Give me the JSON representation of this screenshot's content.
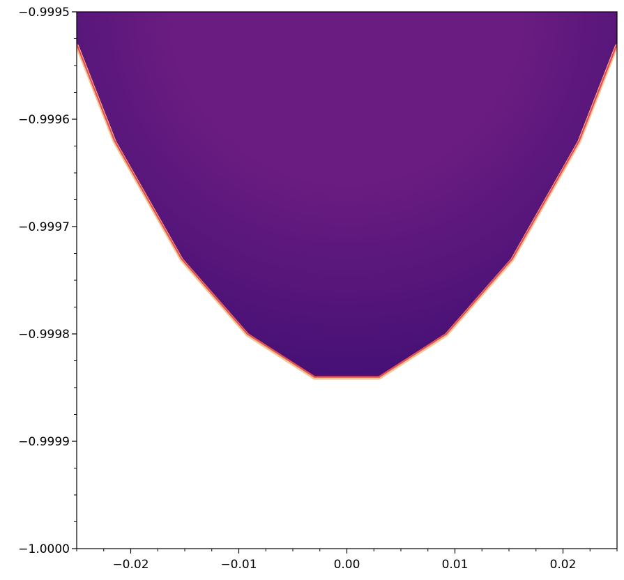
{
  "chart_data": {
    "type": "area",
    "title": "",
    "xlabel": "",
    "ylabel": "",
    "xlim": [
      -0.025,
      0.025
    ],
    "ylim": [
      -1.0,
      -0.9995
    ],
    "x_ticks": [
      -0.02,
      -0.01,
      0.0,
      0.01,
      0.02
    ],
    "x_tick_labels": [
      "−0.02",
      "−0.01",
      "0.00",
      "0.01",
      "0.02"
    ],
    "y_ticks": [
      -1.0,
      -0.9999,
      -0.9998,
      -0.9997,
      -0.9996,
      -0.9995
    ],
    "y_tick_labels": [
      "−1.0000",
      "−0.9999",
      "−0.9998",
      "−0.9997",
      "−0.9996",
      "−0.9995"
    ],
    "x_minor_step": 0.0025,
    "y_minor_step": 2.5e-05,
    "grid": false,
    "legend": "none",
    "colormap": "magma",
    "boundary": {
      "x": [
        -0.025,
        -0.0215,
        -0.0153,
        -0.0092,
        -0.003,
        0.003,
        0.0092,
        0.0153,
        0.0215,
        0.025
      ],
      "y": [
        -0.99953,
        -0.99962,
        -0.99973,
        -0.9998,
        -0.99984,
        -0.99984,
        -0.9998,
        -0.99973,
        -0.99962,
        -0.99953
      ]
    },
    "colors": {
      "fill_dark": "#420f75",
      "fill_light": "#6a1c80",
      "edge_inner": "#e64a62",
      "edge_outer": "#fec488"
    }
  }
}
